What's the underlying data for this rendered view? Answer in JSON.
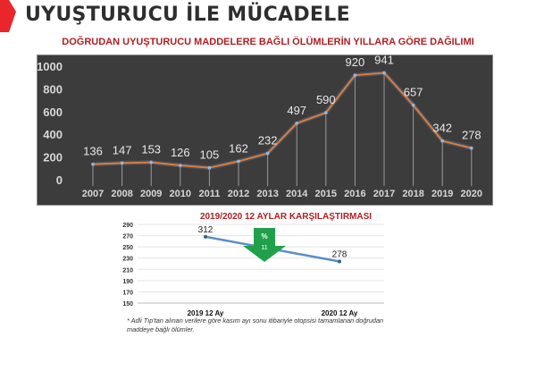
{
  "page": {
    "title": "UYUŞTURUCU İLE MÜCADELE",
    "accent_color": "#e8262b"
  },
  "chart_data": [
    {
      "type": "line",
      "title": "DOĞRUDAN UYUŞTURUCU MADDELERE BAĞLI ÖLÜMLERİN YILLARA GÖRE DAĞILIMI",
      "xlabel": "",
      "ylabel": "",
      "categories": [
        "2007",
        "2008",
        "2009",
        "2010",
        "2011",
        "2012",
        "2013",
        "2014",
        "2015",
        "2016",
        "2017",
        "2018",
        "2019",
        "2020"
      ],
      "values": [
        136,
        147,
        153,
        126,
        105,
        162,
        232,
        497,
        590,
        920,
        941,
        657,
        342,
        278
      ],
      "y_ticks": [
        "1000",
        "800",
        "600",
        "400",
        "200",
        "0"
      ],
      "ylim": [
        0,
        1000
      ],
      "grid": false,
      "background": "#3c3c3c",
      "line_color": "#e07b39",
      "data_labels": true
    },
    {
      "type": "line",
      "title": "2019/2020 12 AYLAR KARŞILAŞTIRMASI",
      "categories": [
        "2019 12 Ay",
        "2020  12 Ay"
      ],
      "values": [
        312,
        278
      ],
      "y_ticks": [
        "290",
        "270",
        "250",
        "230",
        "210",
        "190",
        "170",
        "150"
      ],
      "ylim": [
        150,
        290
      ],
      "grid": true,
      "line_color": "#5b8ec8",
      "annotation": {
        "symbol": "%",
        "value": "11",
        "direction": "down",
        "color": "#21a04a"
      }
    }
  ],
  "footnote": "* Adli Tıp'tan alınan verilere göre kasım ayı sonu itibariyle otopsisi tamamlanan doğrudan maddeye bağlı ölümler."
}
